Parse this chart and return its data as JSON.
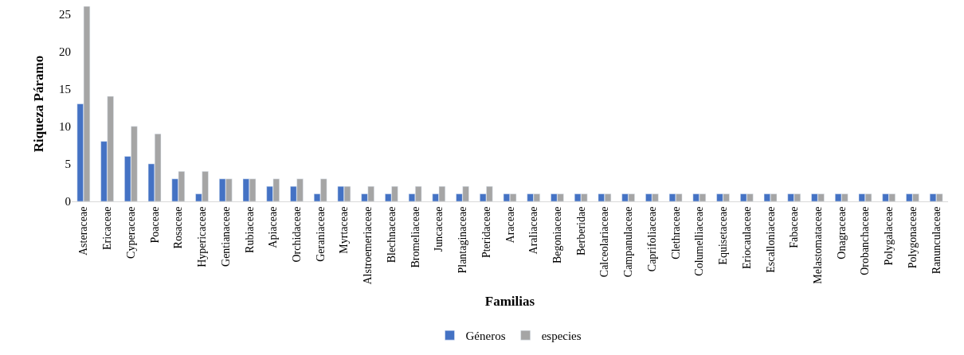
{
  "chart_data": {
    "type": "bar",
    "xlabel": "Familias",
    "ylabel": "Riqueza Páramo",
    "categories": [
      "Asteraceae",
      "Ericaceae",
      "Cyperaceae",
      "Poaceae",
      "Rosaceae",
      "Hypericaceae",
      "Gentianaceae",
      "Rubiaceae",
      "Apiaceae",
      "Orchidaceae",
      "Geraniaceae",
      "Myrtaceae",
      "Alstroemeriaceae",
      "Blechnaceae",
      "Bromeliaceae",
      "Juncaceae",
      "Plantaginaceae",
      "Pteridaceae",
      "Araceae",
      "Araliaceae",
      "Begoniaceae",
      "Berberidae",
      "Calceolariaceae",
      "Campanulaceae",
      "Caprifoliaceae",
      "Clethraceae",
      "Columelliaceae",
      "Equisetaceae",
      "Eriocaulaceae",
      "Escalloniaceae",
      "Fabaceae",
      "Melastomataceae",
      "Onagraceae",
      "Orobanchaceae",
      "Polygalaceae",
      "Polygonaceae",
      "Ranunculaceae"
    ],
    "series": [
      {
        "name": "Géneros",
        "color": "#4472c4",
        "values": [
          13,
          8,
          6,
          5,
          3,
          1,
          3,
          3,
          2,
          2,
          1,
          2,
          1,
          1,
          1,
          1,
          1,
          1,
          1,
          1,
          1,
          1,
          1,
          1,
          1,
          1,
          1,
          1,
          1,
          1,
          1,
          1,
          1,
          1,
          1,
          1,
          1
        ]
      },
      {
        "name": "especies",
        "color": "#a5a5a5",
        "values": [
          26,
          14,
          10,
          9,
          4,
          4,
          3,
          3,
          3,
          3,
          3,
          2,
          2,
          2,
          2,
          2,
          2,
          2,
          1,
          1,
          1,
          1,
          1,
          1,
          1,
          1,
          1,
          1,
          1,
          1,
          1,
          1,
          1,
          1,
          1,
          1,
          1
        ]
      }
    ],
    "ylim": [
      0,
      26
    ],
    "yticks": [
      0,
      5,
      10,
      15,
      20,
      25
    ],
    "legend": "bottom"
  }
}
